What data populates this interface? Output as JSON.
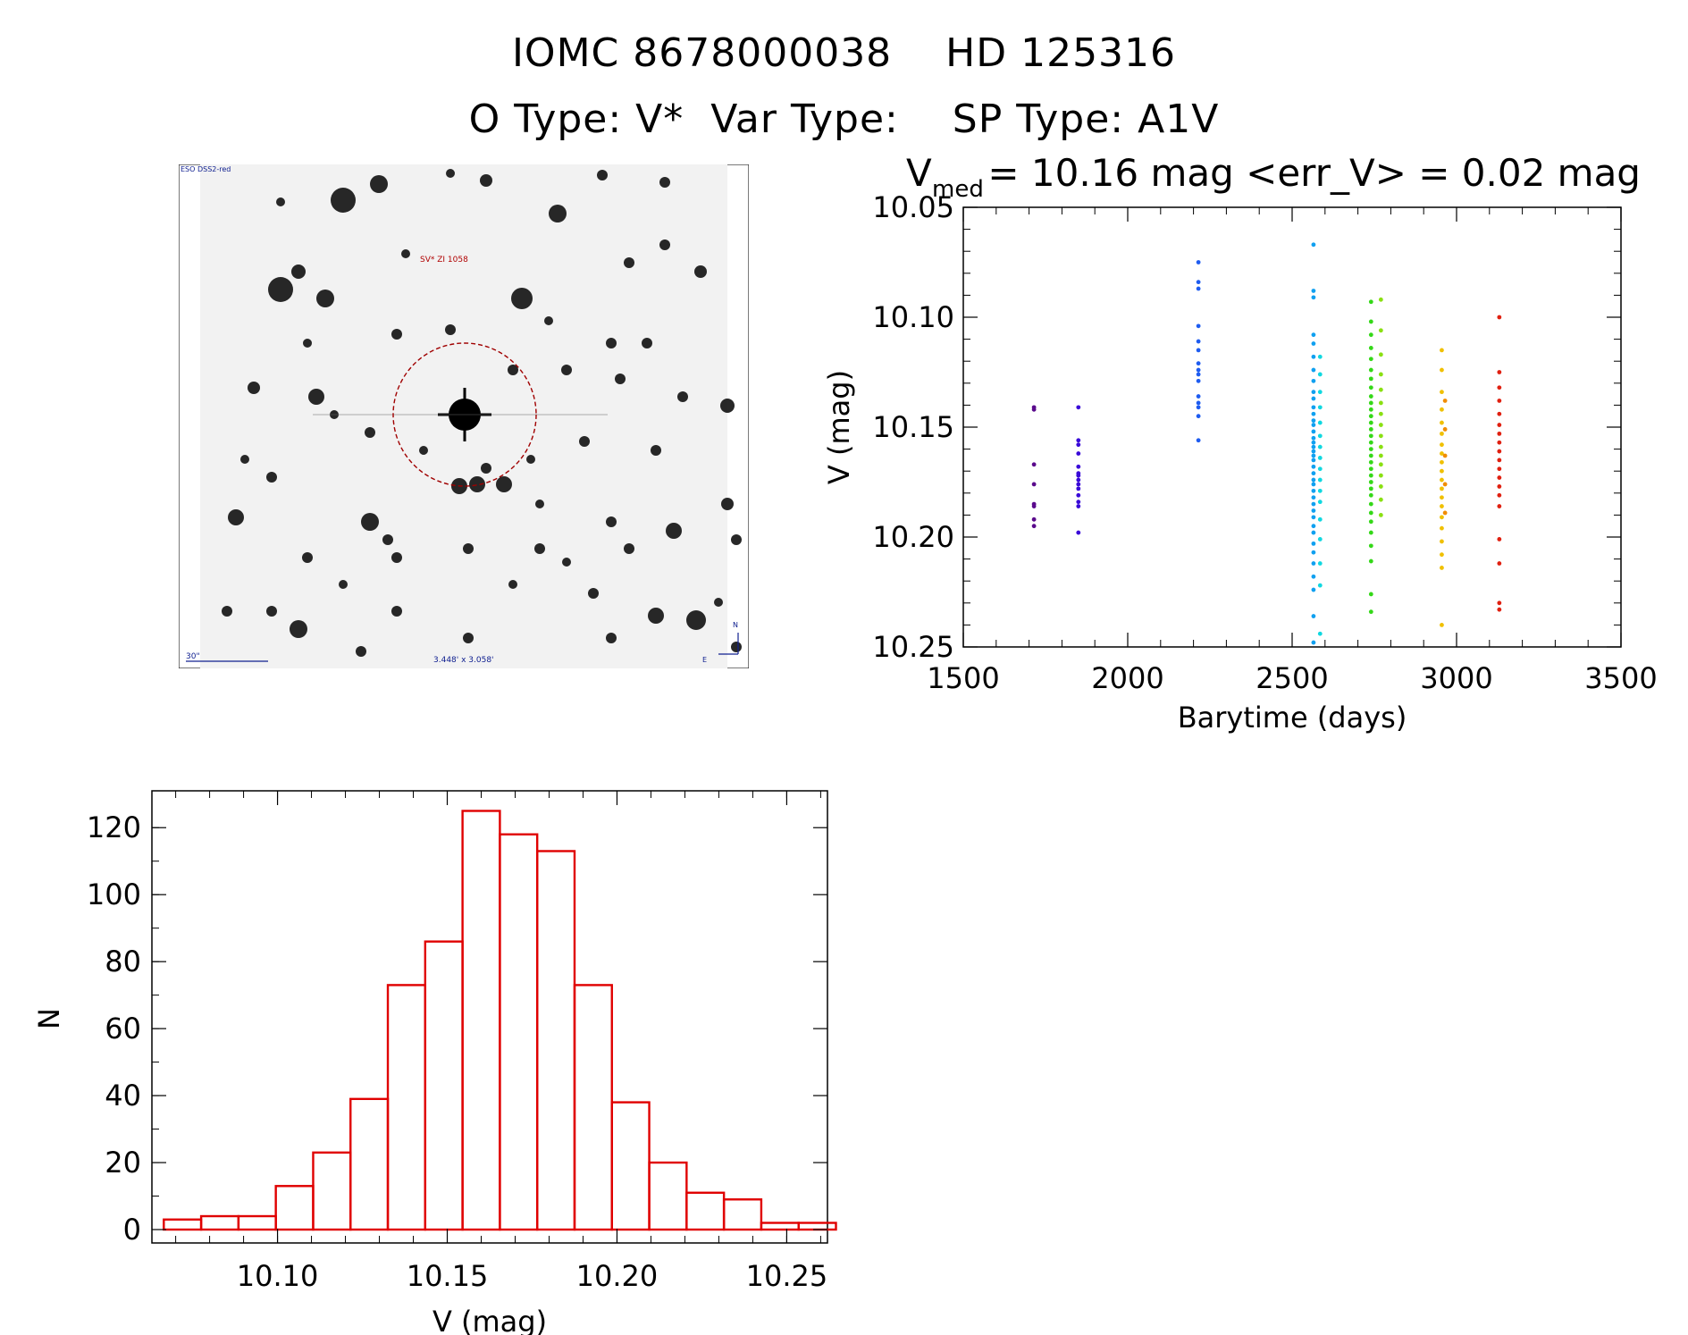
{
  "header": {
    "line1": "IOMC 8678000038    HD 125316",
    "line2": "O Type: V*  Var Type:    SP Type: A1V"
  },
  "finder": {
    "survey_label": "ESO DSS2-red",
    "object_label": "SV* ZI 1058",
    "scale_label": "30\"",
    "fov_label": "3.448' x 3.058'",
    "north_label": "N",
    "east_label": "E"
  },
  "chart_data": [
    {
      "type": "scatter",
      "title": "V_med = 10.16 mag <err_V> = 0.02 mag",
      "title_parts": {
        "v": "V",
        "sub": "med",
        "rest": " = 10.16 mag <err_V> = 0.02 mag"
      },
      "xlabel": "Barytime (days)",
      "ylabel": "V (mag)",
      "xlim": [
        1500,
        3500
      ],
      "ylim": [
        10.05,
        10.25
      ],
      "y_inverted": true,
      "xticks": [
        1500,
        2000,
        2500,
        3000,
        3500
      ],
      "yticks": [
        "10.05",
        "10.10",
        "10.15",
        "10.20",
        "10.25"
      ],
      "groups": [
        {
          "x": 1715,
          "color": "#5a0a8c",
          "y": [
            10.141,
            10.142,
            10.167,
            10.176,
            10.185,
            10.186,
            10.192,
            10.195
          ]
        },
        {
          "x": 1850,
          "color": "#3a0ad8",
          "y": [
            10.141,
            10.156,
            10.158,
            10.162,
            10.168,
            10.171,
            10.172,
            10.174,
            10.176,
            10.178,
            10.181,
            10.184,
            10.186,
            10.198
          ]
        },
        {
          "x": 2215,
          "color": "#1e5cf0",
          "y": [
            10.075,
            10.084,
            10.087,
            10.104,
            10.111,
            10.115,
            10.121,
            10.124,
            10.126,
            10.129,
            10.136,
            10.139,
            10.141,
            10.145,
            10.156
          ]
        },
        {
          "x": 2565,
          "color": "#10a0f0",
          "y": [
            10.067,
            10.088,
            10.091,
            10.108,
            10.112,
            10.118,
            10.124,
            10.129,
            10.134,
            10.137,
            10.141,
            10.144,
            10.147,
            10.149,
            10.152,
            10.155,
            10.157,
            10.159,
            10.161,
            10.163,
            10.165,
            10.168,
            10.171,
            10.174,
            10.176,
            10.179,
            10.182,
            10.185,
            10.188,
            10.191,
            10.195,
            10.198,
            10.203,
            10.207,
            10.212,
            10.218,
            10.224,
            10.236,
            10.248
          ]
        },
        {
          "x": 2585,
          "color": "#10d8e0",
          "y": [
            10.118,
            10.126,
            10.134,
            10.141,
            10.148,
            10.154,
            10.159,
            10.164,
            10.169,
            10.174,
            10.179,
            10.184,
            10.192,
            10.201,
            10.212,
            10.222,
            10.244
          ]
        },
        {
          "x": 2740,
          "color": "#34d818",
          "y": [
            10.093,
            10.102,
            10.108,
            10.114,
            10.119,
            10.124,
            10.128,
            10.132,
            10.136,
            10.139,
            10.142,
            10.145,
            10.148,
            10.151,
            10.154,
            10.157,
            10.16,
            10.163,
            10.166,
            10.169,
            10.172,
            10.175,
            10.178,
            10.181,
            10.185,
            10.189,
            10.193,
            10.198,
            10.204,
            10.211,
            10.226,
            10.234
          ]
        },
        {
          "x": 2770,
          "color": "#8ae012",
          "y": [
            10.092,
            10.106,
            10.117,
            10.126,
            10.133,
            10.139,
            10.144,
            10.149,
            10.154,
            10.159,
            10.163,
            10.167,
            10.172,
            10.177,
            10.183,
            10.19
          ]
        },
        {
          "x": 2955,
          "color": "#f0c000",
          "y": [
            10.115,
            10.124,
            10.134,
            10.142,
            10.148,
            10.153,
            10.158,
            10.162,
            10.166,
            10.17,
            10.174,
            10.178,
            10.182,
            10.186,
            10.191,
            10.196,
            10.202,
            10.208,
            10.214,
            10.24
          ]
        },
        {
          "x": 2965,
          "color": "#f08c00",
          "y": [
            10.138,
            10.151,
            10.163,
            10.176,
            10.189
          ]
        },
        {
          "x": 3130,
          "color": "#e02010",
          "y": [
            10.1,
            10.125,
            10.132,
            10.138,
            10.144,
            10.149,
            10.153,
            10.157,
            10.161,
            10.165,
            10.169,
            10.173,
            10.177,
            10.181,
            10.186,
            10.201,
            10.212,
            10.23,
            10.233
          ]
        }
      ]
    },
    {
      "type": "bar",
      "xlabel": "V (mag)",
      "ylabel": "N",
      "xlim": [
        10.063,
        10.262
      ],
      "ylim": [
        -4,
        131
      ],
      "xticks": [
        "10.10",
        "10.15",
        "10.20",
        "10.25"
      ],
      "yticks": [
        "0",
        "20",
        "40",
        "60",
        "80",
        "100",
        "120"
      ],
      "bar_color": "#e00000",
      "bin_width": 0.01,
      "bin_starts": [
        10.0665,
        10.0775,
        10.0885,
        10.0995,
        10.1105,
        10.1215,
        10.1325,
        10.1435,
        10.1545,
        10.1655,
        10.1765,
        10.1875,
        10.1985,
        10.2095,
        10.2205,
        10.2315,
        10.2425,
        10.2535
      ],
      "values": [
        3,
        4,
        4,
        13,
        23,
        39,
        73,
        86,
        125,
        118,
        113,
        73,
        38,
        20,
        11,
        9,
        2,
        2
      ]
    }
  ]
}
